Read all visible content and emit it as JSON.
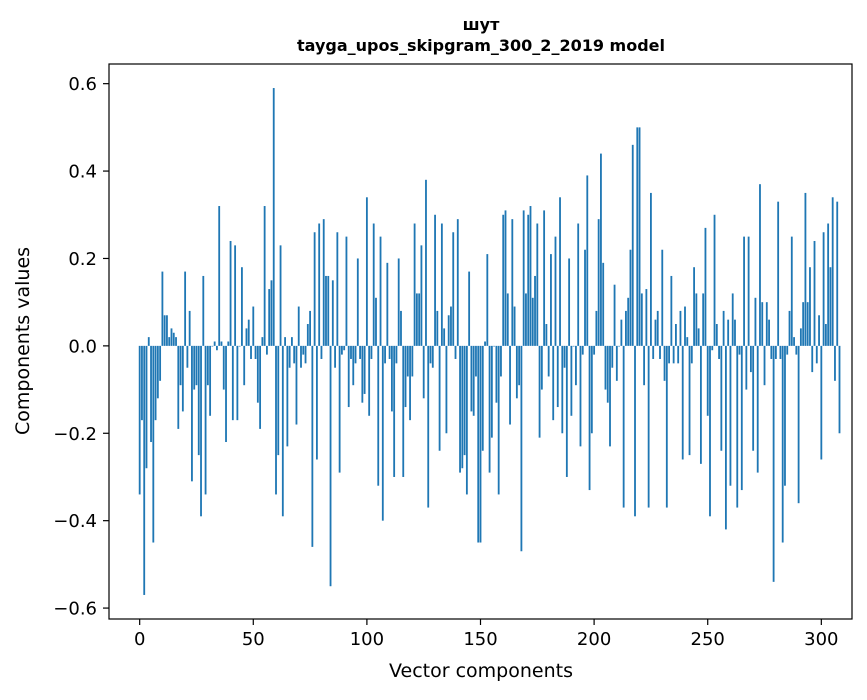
{
  "chart_data": {
    "type": "bar",
    "title": "шут",
    "subtitle": "tayga_upos_skipgram_300_2_2019 model",
    "xlabel": "Vector components",
    "ylabel": "Components values",
    "xlim": [
      -13.5,
      313.5
    ],
    "ylim": [
      -0.625,
      0.645
    ],
    "xticks": [
      0,
      50,
      100,
      150,
      200,
      250,
      300
    ],
    "xtick_labels": [
      "0",
      "50",
      "100",
      "150",
      "200",
      "250",
      "300"
    ],
    "yticks": [
      -0.6,
      -0.4,
      -0.2,
      0.0,
      0.2,
      0.4,
      0.6
    ],
    "ytick_labels": [
      "−0.6",
      "−0.4",
      "−0.2",
      "0.0",
      "0.2",
      "0.4",
      "0.6"
    ],
    "bar_color": "#1f77b4",
    "values": [
      -0.34,
      -0.17,
      -0.57,
      -0.28,
      0.02,
      -0.22,
      -0.45,
      -0.17,
      -0.12,
      -0.08,
      0.17,
      0.07,
      0.07,
      0.02,
      0.04,
      0.03,
      0.02,
      -0.19,
      -0.09,
      -0.15,
      0.17,
      -0.05,
      0.08,
      -0.31,
      -0.1,
      -0.09,
      -0.25,
      -0.39,
      0.16,
      -0.34,
      -0.09,
      -0.16,
      0.0,
      0.01,
      -0.01,
      0.32,
      0.01,
      -0.1,
      -0.22,
      0.01,
      0.24,
      -0.17,
      0.23,
      -0.17,
      0.0,
      0.18,
      -0.09,
      0.04,
      0.06,
      -0.03,
      0.09,
      -0.03,
      -0.13,
      -0.19,
      0.02,
      0.32,
      -0.02,
      0.13,
      0.15,
      0.59,
      -0.34,
      -0.25,
      0.23,
      -0.39,
      0.02,
      -0.23,
      -0.05,
      0.02,
      -0.04,
      -0.18,
      0.09,
      -0.05,
      -0.02,
      -0.04,
      0.05,
      0.08,
      -0.46,
      0.26,
      -0.26,
      0.28,
      -0.03,
      0.29,
      0.16,
      0.16,
      -0.55,
      0.15,
      -0.05,
      0.26,
      -0.29,
      -0.02,
      -0.01,
      0.25,
      -0.14,
      -0.03,
      -0.09,
      -0.04,
      0.2,
      -0.03,
      -0.13,
      -0.11,
      0.34,
      -0.16,
      -0.03,
      0.28,
      0.11,
      -0.32,
      0.25,
      -0.4,
      -0.04,
      0.19,
      -0.03,
      -0.15,
      -0.3,
      -0.04,
      0.2,
      0.08,
      -0.3,
      -0.14,
      -0.07,
      -0.17,
      -0.07,
      0.28,
      0.12,
      0.12,
      0.23,
      -0.12,
      0.38,
      -0.37,
      -0.04,
      -0.05,
      0.3,
      0.08,
      -0.24,
      0.28,
      0.04,
      -0.2,
      0.07,
      0.09,
      0.26,
      -0.03,
      0.29,
      -0.29,
      -0.28,
      -0.25,
      -0.34,
      0.17,
      -0.15,
      -0.16,
      -0.07,
      -0.45,
      -0.45,
      -0.24,
      0.01,
      0.21,
      -0.29,
      -0.21,
      0.0,
      -0.13,
      -0.34,
      -0.07,
      0.3,
      0.31,
      0.12,
      -0.18,
      0.29,
      0.09,
      -0.12,
      -0.09,
      -0.47,
      0.31,
      0.12,
      0.3,
      0.32,
      0.11,
      0.16,
      0.28,
      -0.21,
      -0.1,
      0.31,
      0.05,
      -0.07,
      0.21,
      -0.17,
      0.25,
      -0.14,
      0.34,
      -0.2,
      -0.05,
      -0.3,
      0.2,
      -0.16,
      0.0,
      -0.09,
      0.28,
      -0.23,
      -0.02,
      0.22,
      0.39,
      -0.33,
      -0.2,
      -0.02,
      0.08,
      0.29,
      0.44,
      0.19,
      -0.1,
      -0.13,
      -0.23,
      -0.05,
      0.14,
      -0.08,
      0.0,
      0.06,
      -0.37,
      0.08,
      0.11,
      0.22,
      0.46,
      -0.39,
      0.5,
      0.5,
      0.12,
      -0.09,
      0.13,
      -0.37,
      0.35,
      -0.03,
      0.06,
      0.08,
      -0.03,
      0.22,
      -0.08,
      -0.37,
      -0.04,
      0.16,
      -0.04,
      0.05,
      -0.04,
      0.08,
      -0.26,
      0.09,
      0.02,
      -0.25,
      -0.04,
      0.18,
      0.12,
      0.04,
      -0.27,
      0.12,
      0.27,
      -0.16,
      -0.39,
      -0.01,
      0.3,
      0.05,
      -0.03,
      -0.24,
      0.08,
      -0.42,
      0.06,
      -0.32,
      0.12,
      0.06,
      -0.37,
      -0.02,
      -0.33,
      0.25,
      -0.1,
      0.25,
      -0.06,
      -0.24,
      0.11,
      -0.29,
      0.37,
      0.1,
      -0.09,
      0.1,
      0.06,
      -0.03,
      -0.54,
      -0.03,
      0.33,
      -0.03,
      -0.45,
      -0.32,
      -0.02,
      0.08,
      0.25,
      0.02,
      -0.02,
      -0.36,
      0.04,
      0.1,
      0.35,
      0.1,
      0.18,
      -0.06,
      0.24,
      -0.04,
      0.07,
      -0.26,
      0.26,
      0.05,
      0.28,
      0.18,
      0.34,
      -0.08,
      0.33,
      -0.2
    ]
  }
}
